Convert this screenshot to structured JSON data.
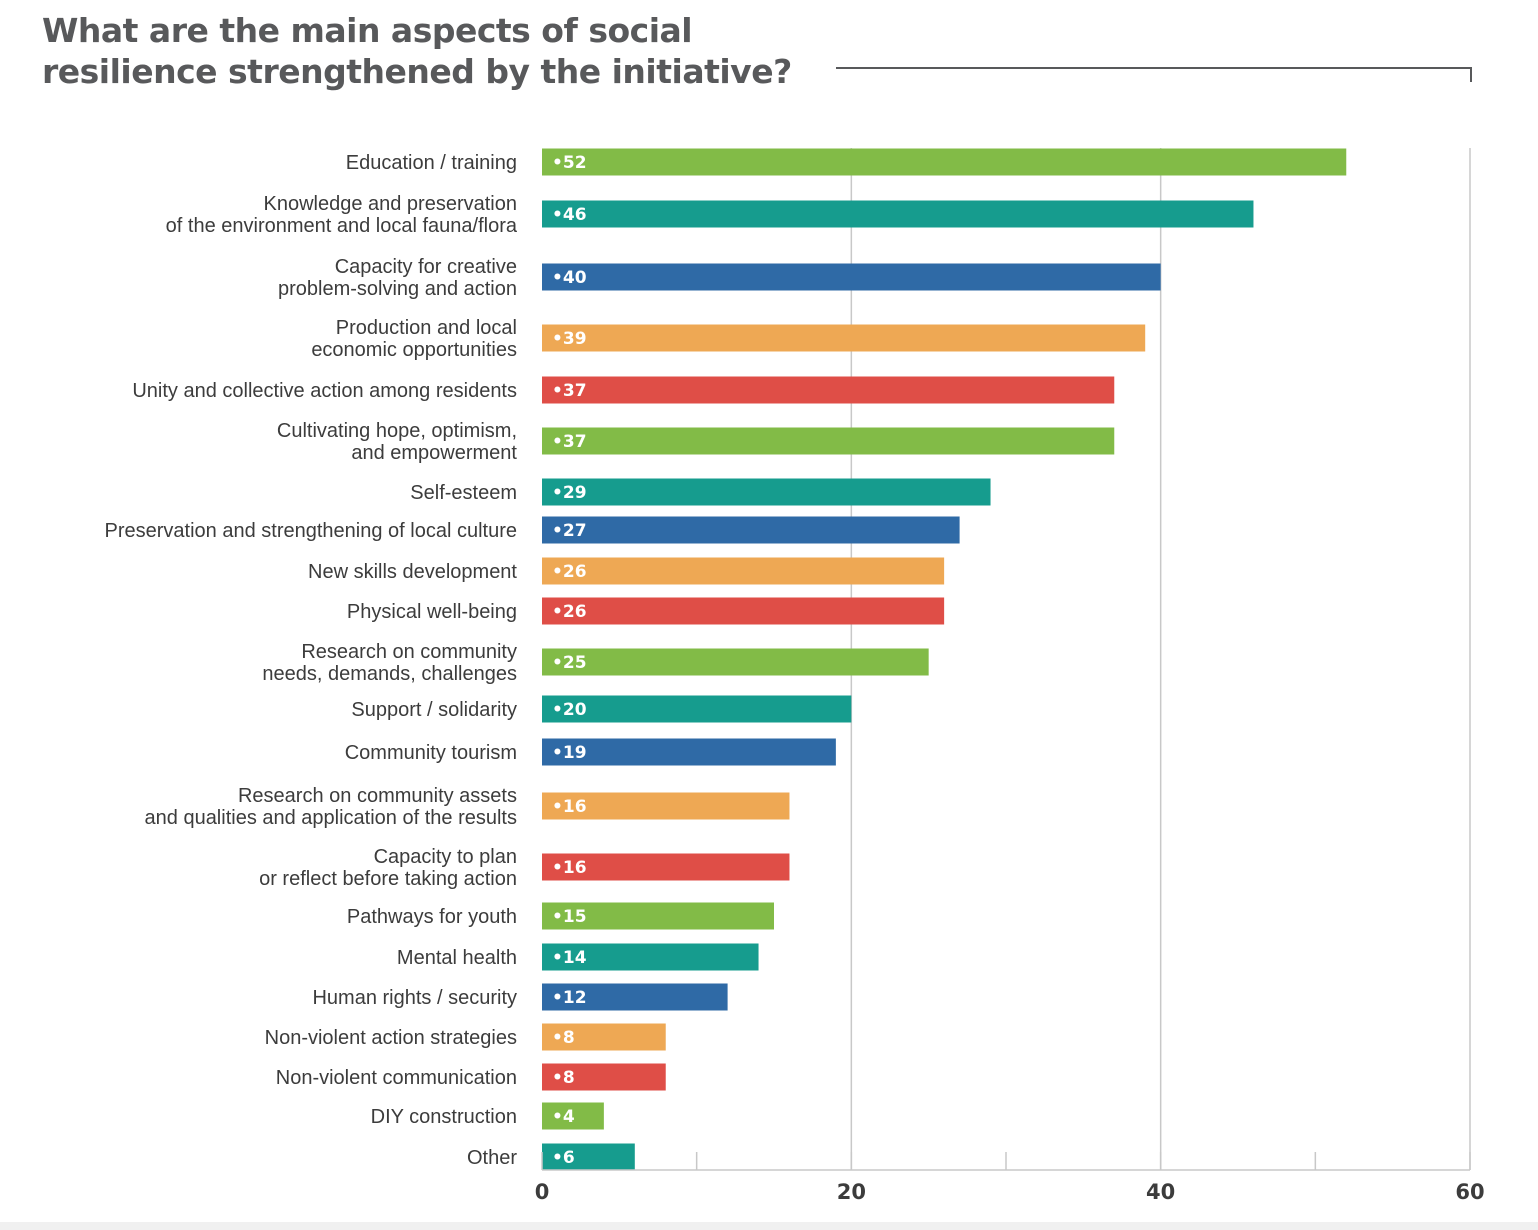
{
  "title": "What are the main aspects of social resilience strengthened by the initiative?",
  "chart_data": {
    "type": "bar",
    "orientation": "horizontal",
    "title": "What are the main aspects of social resilience strengthened by the initiative?",
    "xlim": [
      0,
      60
    ],
    "x_ticks": [
      0,
      20,
      40,
      60
    ],
    "grid": true,
    "data_label_prefix": "•",
    "categories": [
      [
        "Education / training"
      ],
      [
        "Knowledge and preservation",
        "of the environment and local fauna/flora"
      ],
      [
        "Capacity for creative",
        "problem-solving and action"
      ],
      [
        "Production and local",
        "economic opportunities"
      ],
      [
        "Unity and collective action among residents"
      ],
      [
        "Cultivating hope, optimism,",
        "and empowerment"
      ],
      [
        "Self-esteem"
      ],
      [
        "Preservation and strengthening of local culture"
      ],
      [
        "New skills development"
      ],
      [
        "Physical well-being"
      ],
      [
        "Research on community",
        "needs, demands, challenges"
      ],
      [
        "Support / solidarity"
      ],
      [
        "Community tourism"
      ],
      [
        "Research on community assets",
        "and qualities and application of the results"
      ],
      [
        "Capacity to plan",
        "or reflect before taking action"
      ],
      [
        "Pathways for youth"
      ],
      [
        "Mental health"
      ],
      [
        "Human rights / security"
      ],
      [
        "Non-violent action strategies"
      ],
      [
        "Non-violent communication"
      ],
      [
        "DIY construction"
      ],
      [
        "Other"
      ]
    ],
    "values": [
      52,
      46,
      40,
      39,
      37,
      37,
      29,
      27,
      26,
      26,
      25,
      20,
      19,
      16,
      16,
      15,
      14,
      12,
      8,
      8,
      4,
      6
    ],
    "bar_colors": [
      "#82bb47",
      "#169c8e",
      "#2f6aa6",
      "#eea854",
      "#df4e47",
      "#82bb47",
      "#169c8e",
      "#2f6aa6",
      "#eea854",
      "#df4e47",
      "#82bb47",
      "#169c8e",
      "#2f6aa6",
      "#eea854",
      "#df4e47",
      "#82bb47",
      "#169c8e",
      "#2f6aa6",
      "#eea854",
      "#df4e47",
      "#82bb47",
      "#169c8e"
    ]
  }
}
